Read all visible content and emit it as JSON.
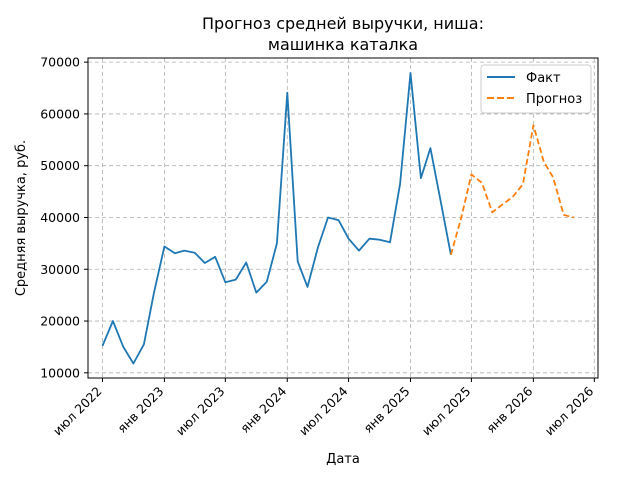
{
  "chart_data": {
    "type": "line",
    "title": [
      "Прогноз средней выручки, ниша:",
      "машинка каталка"
    ],
    "xlabel": "Дата",
    "ylabel": "Средняя выручка, руб.",
    "ylim": [
      9000,
      70800
    ],
    "yticks": [
      10000,
      20000,
      30000,
      40000,
      50000,
      60000,
      70000
    ],
    "xlim": [
      "2022-05-19",
      "2026-07-12"
    ],
    "xticks": [
      {
        "date": "2022-07-01",
        "label": "июл 2022"
      },
      {
        "date": "2023-01-01",
        "label": "янв 2023"
      },
      {
        "date": "2023-07-01",
        "label": "июл 2023"
      },
      {
        "date": "2024-01-01",
        "label": "янв 2024"
      },
      {
        "date": "2024-07-01",
        "label": "июл 2024"
      },
      {
        "date": "2025-01-01",
        "label": "янв 2025"
      },
      {
        "date": "2025-07-01",
        "label": "июл 2025"
      },
      {
        "date": "2026-01-01",
        "label": "янв 2026"
      },
      {
        "date": "2026-07-01",
        "label": "июл 2026"
      }
    ],
    "grid": true,
    "legend_position": "top-right",
    "series": [
      {
        "name": "Факт",
        "color": "#1f77b4",
        "style": "solid",
        "x": [
          "2022-07-01",
          "2022-08-01",
          "2022-09-01",
          "2022-10-01",
          "2022-11-01",
          "2022-12-01",
          "2023-01-01",
          "2023-02-01",
          "2023-03-01",
          "2023-04-01",
          "2023-05-01",
          "2023-06-01",
          "2023-07-01",
          "2023-08-01",
          "2023-09-01",
          "2023-10-01",
          "2023-11-01",
          "2023-12-01",
          "2024-01-01",
          "2024-02-01",
          "2024-03-01",
          "2024-04-01",
          "2024-05-01",
          "2024-06-01",
          "2024-07-01",
          "2024-08-01",
          "2024-09-01",
          "2024-10-01",
          "2024-11-01",
          "2024-12-01",
          "2025-01-01",
          "2025-02-01",
          "2025-03-01",
          "2025-04-01",
          "2025-05-01"
        ],
        "y": [
          15200,
          20000,
          15000,
          11800,
          15500,
          25500,
          34400,
          33100,
          33600,
          33200,
          31200,
          32400,
          27500,
          28000,
          31300,
          25500,
          27600,
          35000,
          64100,
          31500,
          26600,
          34200,
          40000,
          39500,
          35900,
          33600,
          35900,
          35700,
          35200,
          46500,
          67900,
          47600,
          53400,
          43000,
          32800
        ]
      },
      {
        "name": "Прогноз",
        "color": "#ff7f0e",
        "style": "dashed",
        "x": [
          "2025-05-01",
          "2025-06-01",
          "2025-07-01",
          "2025-08-01",
          "2025-09-01",
          "2025-10-01",
          "2025-11-01",
          "2025-12-01",
          "2026-01-01",
          "2026-02-01",
          "2026-03-01",
          "2026-04-01",
          "2026-05-01"
        ],
        "y": [
          32800,
          40000,
          48300,
          46700,
          41000,
          42500,
          44000,
          46400,
          57800,
          50800,
          47700,
          40500,
          40000
        ]
      }
    ]
  }
}
